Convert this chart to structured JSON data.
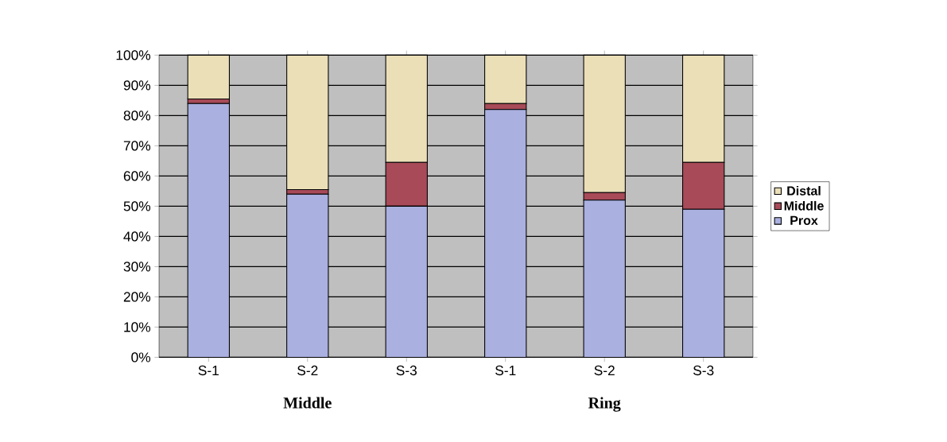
{
  "chart_data": {
    "type": "bar",
    "stacked": true,
    "categories": [
      "S-1",
      "S-2",
      "S-3",
      "S-1",
      "S-2",
      "S-3"
    ],
    "series": [
      {
        "name": "Prox",
        "color": "#aab0e0",
        "values": [
          84,
          54,
          50,
          82,
          52,
          49
        ]
      },
      {
        "name": "Middle",
        "color": "#a84a58",
        "values": [
          1.5,
          1.5,
          14.5,
          2,
          2.5,
          15.5
        ]
      },
      {
        "name": "Distal",
        "color": "#ebdfb8",
        "values": [
          14.5,
          44.5,
          35.5,
          16,
          45.5,
          35.5
        ]
      }
    ],
    "ylim": [
      0,
      100
    ],
    "yticks": [
      {
        "value": 0,
        "label": "0%"
      },
      {
        "value": 10,
        "label": "10%"
      },
      {
        "value": 20,
        "label": "20%"
      },
      {
        "value": 30,
        "label": "30%"
      },
      {
        "value": 40,
        "label": "40%"
      },
      {
        "value": 50,
        "label": "50%"
      },
      {
        "value": 60,
        "label": "60%"
      },
      {
        "value": 70,
        "label": "70%"
      },
      {
        "value": 80,
        "label": "80%"
      },
      {
        "value": 90,
        "label": "90%"
      },
      {
        "value": 100,
        "label": "100%"
      }
    ],
    "grid": "y",
    "legend": "right",
    "annotations": [
      "Middle",
      "Ring"
    ]
  }
}
